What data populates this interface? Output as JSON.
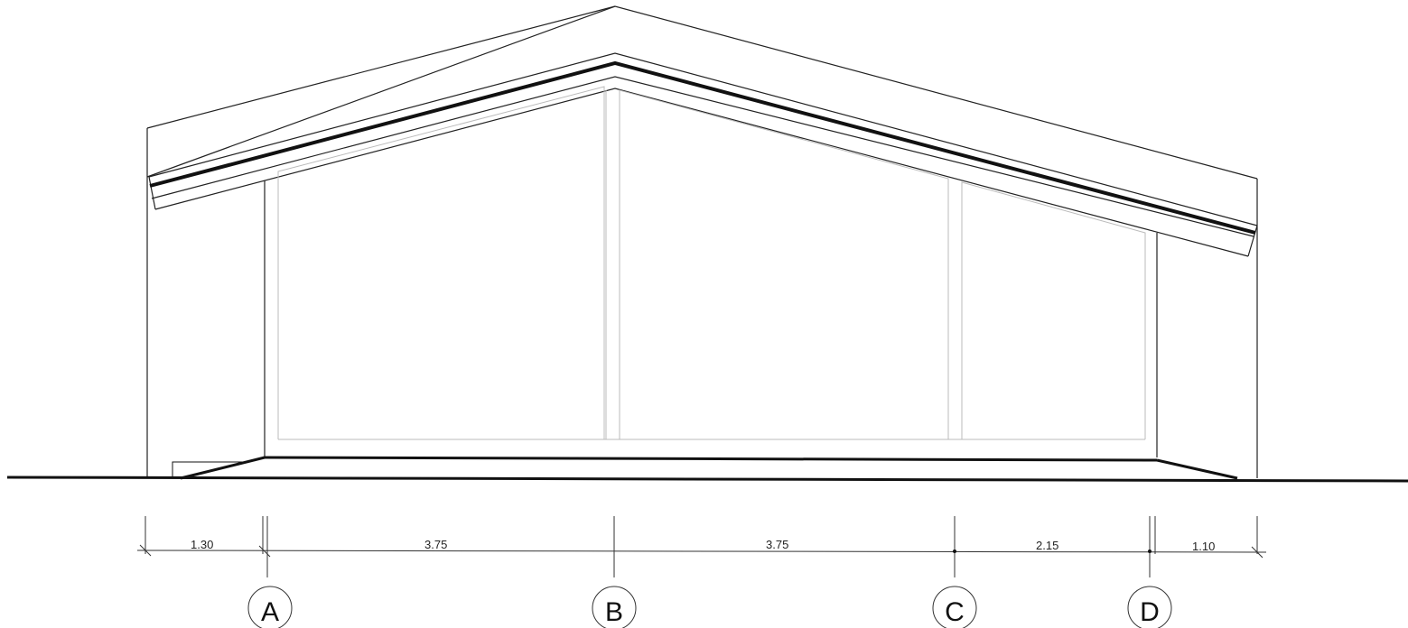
{
  "dimensions": {
    "d1": "1.30",
    "d2": "3.75",
    "d3": "3.75",
    "d4": "2.15",
    "d5": "1.10"
  },
  "axes": {
    "a": "A",
    "b": "B",
    "c": "C",
    "d": "D"
  }
}
